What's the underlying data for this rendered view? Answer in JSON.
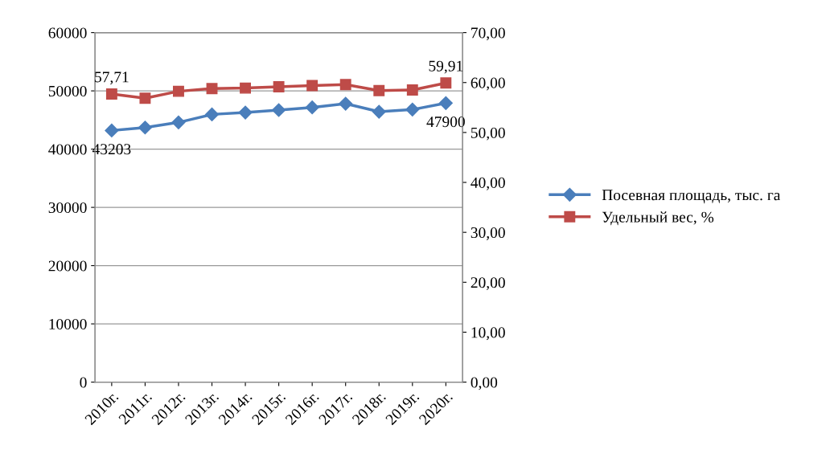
{
  "chart_data": {
    "type": "line",
    "categories": [
      "2010г.",
      "2011г.",
      "2012г.",
      "2013г.",
      "2014г.",
      "2015г.",
      "2016г.",
      "2017г.",
      "2018г.",
      "2019г.",
      "2020г."
    ],
    "series": [
      {
        "name": "Посевная площадь, тыс. га",
        "color": "#4a7ebb",
        "marker": "diamond",
        "values": [
          43203,
          43700,
          44590,
          45960,
          46280,
          46700,
          47160,
          47800,
          46420,
          46790,
          47900
        ],
        "value_labels": [
          "43203",
          null,
          null,
          null,
          null,
          null,
          null,
          null,
          null,
          null,
          "47900"
        ]
      },
      {
        "name": "Удельный вес, %",
        "color": "#be4b48",
        "marker": "square",
        "axis": "y2",
        "values": [
          57.71,
          56.86,
          58.25,
          58.8,
          58.9,
          59.15,
          59.4,
          59.6,
          58.4,
          58.5,
          59.91
        ],
        "value_labels": [
          "57,71",
          null,
          null,
          null,
          null,
          null,
          null,
          null,
          null,
          null,
          "59,91"
        ]
      }
    ],
    "ylim": [
      0,
      60000
    ],
    "yticks": [
      0,
      10000,
      20000,
      30000,
      40000,
      50000,
      60000
    ],
    "y2lim": [
      0,
      70
    ],
    "y2ticks": [
      {
        "value": 0,
        "label": "0,00"
      },
      {
        "value": 10,
        "label": "10,00"
      },
      {
        "value": 20,
        "label": "20,00"
      },
      {
        "value": 30,
        "label": "30,00"
      },
      {
        "value": 40,
        "label": "40,00"
      },
      {
        "value": 50,
        "label": "50,00"
      },
      {
        "value": 60,
        "label": "60,00"
      },
      {
        "value": 70,
        "label": "70,00"
      }
    ],
    "grid": "y",
    "legend": "right",
    "line_style": "solid"
  }
}
